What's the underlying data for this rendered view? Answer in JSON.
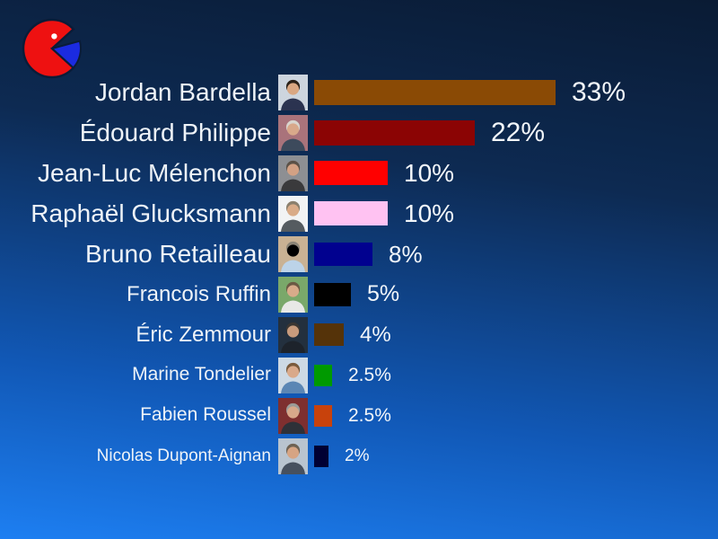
{
  "page": {
    "background_top_color": "#0a1b34",
    "background_bottom_color": "#1d7ff2",
    "text_color": "#eef3f8"
  },
  "logo": {
    "description": "pie-chart pacman emblem",
    "body_color": "#ee1111",
    "wedge_color": "#1b2be0",
    "outline_color": "#0a1c38",
    "dot_color": "#ffffff"
  },
  "chart_data": {
    "type": "bar",
    "orientation": "horizontal",
    "title": "",
    "xlabel": "",
    "ylabel": "",
    "legend": false,
    "grid": false,
    "axis_shown": false,
    "categories": [
      "Jordan Bardella",
      "Édouard Philippe",
      "Jean-Luc Mélenchon",
      "Raphaël Glucksmann",
      "Bruno Retailleau",
      "Francois Ruffin",
      "Éric Zemmour",
      "Marine Tondelier",
      "Fabien Roussel",
      "Nicolas Dupont-Aignan"
    ],
    "values": [
      33,
      22,
      10,
      10,
      8,
      5,
      4,
      2.5,
      2.5,
      2
    ],
    "value_labels": [
      "33%",
      "22%",
      "10%",
      "10%",
      "8%",
      "5%",
      "4%",
      "2.5%",
      "2.5%",
      "2%"
    ],
    "bar_colors": [
      "#8a4a05",
      "#8b0404",
      "#ff0000",
      "#ffc2f2",
      "#01018f",
      "#000000",
      "#553309",
      "#009a00",
      "#c8420c",
      "#000033"
    ],
    "xlim": [
      0,
      40
    ]
  },
  "people": [
    {
      "name": "Jordan Bardella",
      "value": 33,
      "label": "33%",
      "bar_color": "#8a4a05",
      "photo": {
        "bg": "#cdd5de",
        "skin": "#d9a782",
        "hair": "#2a2118",
        "suit": "#2b3350"
      }
    },
    {
      "name": "Édouard Philippe",
      "value": 22,
      "label": "22%",
      "bar_color": "#8b0404",
      "photo": {
        "bg": "#a9737b",
        "skin": "#d8a88a",
        "hair": "#d8d5ce",
        "suit": "#3d4a5c"
      }
    },
    {
      "name": "Jean-Luc Mélenchon",
      "value": 10,
      "label": "10%",
      "bar_color": "#ff0000",
      "photo": {
        "bg": "#8d8f93",
        "skin": "#d3a184",
        "hair": "#5b5147",
        "suit": "#3a3a3c"
      }
    },
    {
      "name": "Raphaël Glucksmann",
      "value": 10,
      "label": "10%",
      "bar_color": "#ffc2f2",
      "photo": {
        "bg": "#f2f3f4",
        "skin": "#d9ab88",
        "hair": "#8a7f6d",
        "suit": "#555b60"
      }
    },
    {
      "name": "Bruno Retailleau",
      "value": 8,
      "label": "8%",
      "bar_color": "#01018f",
      "photo": {
        "bg": "#c9b294",
        "skin": "#d7a械",
        "hair": "#8c8577",
        "suit": "#bcd3e8"
      }
    },
    {
      "name": "Francois Ruffin",
      "value": 5,
      "label": "5%",
      "bar_color": "#000000",
      "photo": {
        "bg": "#7aa86a",
        "skin": "#d8ab8a",
        "hair": "#6b5a44",
        "suit": "#e8e8e6"
      }
    },
    {
      "name": "Éric Zemmour",
      "value": 4,
      "label": "4%",
      "bar_color": "#553309",
      "photo": {
        "bg": "#23303e",
        "skin": "#c79b7d",
        "hair": "#3a3632",
        "suit": "#1d232b"
      }
    },
    {
      "name": "Marine Tondelier",
      "value": 2.5,
      "label": "2.5%",
      "bar_color": "#009a00",
      "photo": {
        "bg": "#cdd9e4",
        "skin": "#d9a98a",
        "hair": "#7a5a3c",
        "suit": "#5b86b4"
      }
    },
    {
      "name": "Fabien Roussel",
      "value": 2.5,
      "label": "2.5%",
      "bar_color": "#c8420c",
      "photo": {
        "bg": "#7e2f2f",
        "skin": "#d8a88a",
        "hair": "#9b9b97",
        "suit": "#2e3138"
      }
    },
    {
      "name": "Nicolas Dupont-Aignan",
      "value": 2,
      "label": "2%",
      "bar_color": "#000033",
      "photo": {
        "bg": "#b9c4cf",
        "skin": "#d6a483",
        "hair": "#6e6253",
        "suit": "#46505e"
      }
    }
  ]
}
